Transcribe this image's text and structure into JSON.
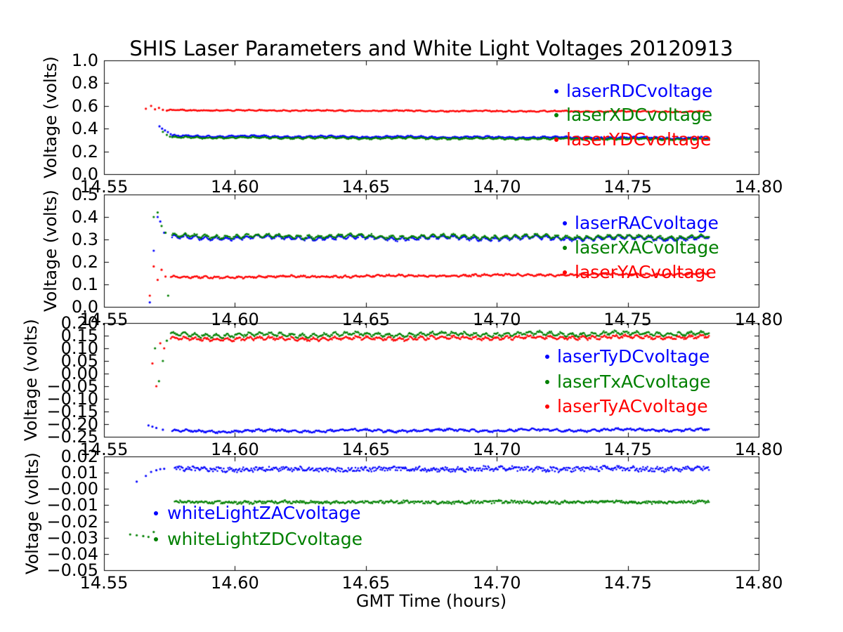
{
  "figure": {
    "title": "SHIS Laser Parameters and White Light Voltages 20120913",
    "xlabel": "GMT Time (hours)",
    "background": "#ffffff",
    "axis_color": "#000000"
  },
  "chart_data": [
    {
      "type": "scatter",
      "ylabel": "Voltage (volts)",
      "xlim": [
        14.55,
        14.8
      ],
      "ylim": [
        0.0,
        1.0
      ],
      "xticks": [
        14.55,
        14.6,
        14.65,
        14.7,
        14.75,
        14.8
      ],
      "xtick_labels": [
        "14.55",
        "14.60",
        "14.65",
        "14.70",
        "14.75",
        "14.80"
      ],
      "yticks": [
        0.0,
        0.2,
        0.4,
        0.6,
        0.8,
        1.0
      ],
      "ytick_labels": [
        "0.0",
        "0.2",
        "0.4",
        "0.6",
        "0.8",
        "1.0"
      ],
      "legend_position": "upper-right",
      "series": [
        {
          "name": "laserRDCvoltage",
          "color": "#0000ff",
          "x_start": 14.576,
          "x_end": 14.781,
          "y_start": 0.335,
          "y_end": 0.318,
          "wiggle_amp": 0.005,
          "wiggle_cycles": 48,
          "wiggle2_amp": 0.004,
          "wiggle2_cycles": 7,
          "noise": 0.004,
          "transient_x": [
            14.5712,
            14.5722,
            14.5733,
            14.5744,
            14.5755
          ],
          "transient_y": [
            0.42,
            0.4,
            0.385,
            0.37,
            0.352
          ]
        },
        {
          "name": "laserXDCvoltage",
          "color": "#008000",
          "x_start": 14.576,
          "x_end": 14.781,
          "y_start": 0.322,
          "y_end": 0.306,
          "wiggle_amp": 0.005,
          "wiggle_cycles": 48,
          "wiggle2_amp": 0.003,
          "wiggle2_cycles": 7,
          "noise": 0.004,
          "transient_x": [
            14.5725,
            14.574,
            14.5752
          ],
          "transient_y": [
            0.372,
            0.345,
            0.33
          ]
        },
        {
          "name": "laserYDCvoltage",
          "color": "#ff0000",
          "x_start": 14.5745,
          "x_end": 14.781,
          "y_start": 0.562,
          "y_end": 0.549,
          "wiggle_amp": 0.003,
          "wiggle_cycles": 48,
          "wiggle2_amp": 0.002,
          "wiggle2_cycles": 7,
          "noise": 0.0035,
          "transient_x": [
            14.566,
            14.568,
            14.5695,
            14.571,
            14.5725,
            14.574
          ],
          "transient_y": [
            0.575,
            0.6,
            0.57,
            0.582,
            0.565,
            0.558
          ]
        }
      ]
    },
    {
      "type": "scatter",
      "ylabel": "Voltage (volts)",
      "xlim": [
        14.55,
        14.8
      ],
      "ylim": [
        0.0,
        0.5
      ],
      "xticks": [
        14.55,
        14.6,
        14.65,
        14.7,
        14.75,
        14.8
      ],
      "xtick_labels": [
        "14.55",
        "14.60",
        "14.65",
        "14.70",
        "14.75",
        "14.80"
      ],
      "yticks": [
        0.0,
        0.1,
        0.2,
        0.3,
        0.4,
        0.5
      ],
      "ytick_labels": [
        "0.0",
        "0.1",
        "0.2",
        "0.3",
        "0.4",
        "0.5"
      ],
      "legend_position": "upper-right",
      "series": [
        {
          "name": "laserRACvoltage",
          "color": "#0000ff",
          "x_start": 14.576,
          "x_end": 14.781,
          "y_start": 0.308,
          "y_end": 0.305,
          "wiggle_amp": 0.007,
          "wiggle_cycles": 52,
          "wiggle2_amp": 0.005,
          "wiggle2_cycles": 6,
          "noise": 0.004,
          "transient_x": [
            14.5675,
            14.569,
            14.5705,
            14.5715,
            14.573
          ],
          "transient_y": [
            0.02,
            0.25,
            0.4,
            0.38,
            0.33
          ]
        },
        {
          "name": "laserXACvoltage",
          "color": "#008000",
          "x_start": 14.576,
          "x_end": 14.781,
          "y_start": 0.315,
          "y_end": 0.31,
          "wiggle_amp": 0.007,
          "wiggle_cycles": 52,
          "wiggle2_amp": 0.004,
          "wiggle2_cycles": 6,
          "noise": 0.004,
          "transient_x": [
            14.569,
            14.5705,
            14.572,
            14.5735,
            14.5745
          ],
          "transient_y": [
            0.4,
            0.42,
            0.36,
            0.33,
            0.05
          ]
        },
        {
          "name": "laserYACvoltage",
          "color": "#ff0000",
          "x_start": 14.5755,
          "x_end": 14.781,
          "y_start": 0.131,
          "y_end": 0.147,
          "wiggle_amp": 0.003,
          "wiggle_cycles": 50,
          "wiggle2_amp": 0.002,
          "wiggle2_cycles": 5,
          "noise": 0.003,
          "transient_x": [
            14.5675,
            14.569,
            14.5705,
            14.572,
            14.5735
          ],
          "transient_y": [
            0.05,
            0.18,
            0.12,
            0.165,
            0.135
          ]
        }
      ]
    },
    {
      "type": "scatter",
      "ylabel": "Voltage (volts)",
      "xlim": [
        14.55,
        14.8
      ],
      "ylim": [
        -0.25,
        0.2
      ],
      "xticks": [
        14.55,
        14.6,
        14.65,
        14.7,
        14.75,
        14.8
      ],
      "xtick_labels": [
        "14.55",
        "14.60",
        "14.65",
        "14.70",
        "14.75",
        "14.80"
      ],
      "yticks": [
        0.2,
        0.15,
        0.1,
        0.05,
        0.0,
        -0.05,
        -0.1,
        -0.15,
        -0.2,
        -0.25
      ],
      "ytick_labels": [
        "0.20",
        "0.15",
        "0.10",
        "0.05",
        "0.00",
        "−0.05",
        "−0.10",
        "−0.15",
        "−0.20",
        "−0.25"
      ],
      "legend_position": "center-right",
      "series": [
        {
          "name": "laserTyDCvoltage",
          "color": "#0000ff",
          "x_start": 14.576,
          "x_end": 14.781,
          "y_start": -0.228,
          "y_end": -0.222,
          "wiggle_amp": 0.003,
          "wiggle_cycles": 45,
          "wiggle2_amp": 0.003,
          "wiggle2_cycles": 6,
          "noise": 0.003,
          "transient_x": [
            14.567,
            14.5685,
            14.57,
            14.5725
          ],
          "transient_y": [
            -0.205,
            -0.21,
            -0.215,
            -0.222
          ]
        },
        {
          "name": "laserTxACvoltage",
          "color": "#008000",
          "x_start": 14.5755,
          "x_end": 14.781,
          "y_start": 0.152,
          "y_end": 0.159,
          "wiggle_amp": 0.006,
          "wiggle_cycles": 50,
          "wiggle2_amp": 0.004,
          "wiggle2_cycles": 6,
          "noise": 0.004,
          "transient_x": [
            14.5695,
            14.571,
            14.5725,
            14.574
          ],
          "transient_y": [
            0.1,
            -0.03,
            0.05,
            0.13
          ]
        },
        {
          "name": "laserTyACvoltage",
          "color": "#ff0000",
          "x_start": 14.5755,
          "x_end": 14.781,
          "y_start": 0.136,
          "y_end": 0.145,
          "wiggle_amp": 0.005,
          "wiggle_cycles": 50,
          "wiggle2_amp": 0.003,
          "wiggle2_cycles": 6,
          "noise": 0.004,
          "transient_x": [
            14.5685,
            14.57,
            14.5715,
            14.573
          ],
          "transient_y": [
            0.04,
            -0.05,
            0.12,
            0.1
          ]
        }
      ]
    },
    {
      "type": "scatter",
      "ylabel": "Voltage (volts)",
      "xlim": [
        14.55,
        14.8
      ],
      "ylim": [
        -0.05,
        0.02
      ],
      "xticks": [
        14.55,
        14.6,
        14.65,
        14.7,
        14.75,
        14.8
      ],
      "xtick_labels": [
        "14.55",
        "14.60",
        "14.65",
        "14.70",
        "14.75",
        "14.80"
      ],
      "yticks": [
        0.02,
        0.01,
        0.0,
        -0.01,
        -0.02,
        -0.03,
        -0.04,
        -0.05
      ],
      "ytick_labels": [
        "0.02",
        "0.01",
        "−0.00",
        "−0.01",
        "−0.02",
        "−0.03",
        "−0.04",
        "−0.05"
      ],
      "legend_position": "lower-left",
      "series": [
        {
          "name": "whiteLightZACvoltage",
          "color": "#0000ff",
          "x_start": 14.577,
          "x_end": 14.781,
          "y_start": 0.012,
          "y_end": 0.0125,
          "wiggle_amp": 0.0005,
          "wiggle_cycles": 40,
          "wiggle2_amp": 0.0004,
          "wiggle2_cycles": 5,
          "noise": 0.0013,
          "transient_x": [
            14.5625,
            14.566,
            14.568,
            14.57,
            14.5715,
            14.573
          ],
          "transient_y": [
            0.0045,
            0.008,
            0.0105,
            0.0115,
            0.0122,
            0.0124
          ]
        },
        {
          "name": "whiteLightZDCvoltage",
          "color": "#008000",
          "x_start": 14.577,
          "x_end": 14.781,
          "y_start": -0.0082,
          "y_end": -0.008,
          "wiggle_amp": 0.0003,
          "wiggle_cycles": 40,
          "wiggle2_amp": 0.0002,
          "wiggle2_cycles": 5,
          "noise": 0.0008,
          "transient_x": [
            14.56,
            14.5625,
            14.565,
            14.567,
            14.569
          ],
          "transient_y": [
            -0.028,
            -0.0285,
            -0.029,
            -0.0295,
            -0.0265
          ]
        }
      ]
    }
  ]
}
